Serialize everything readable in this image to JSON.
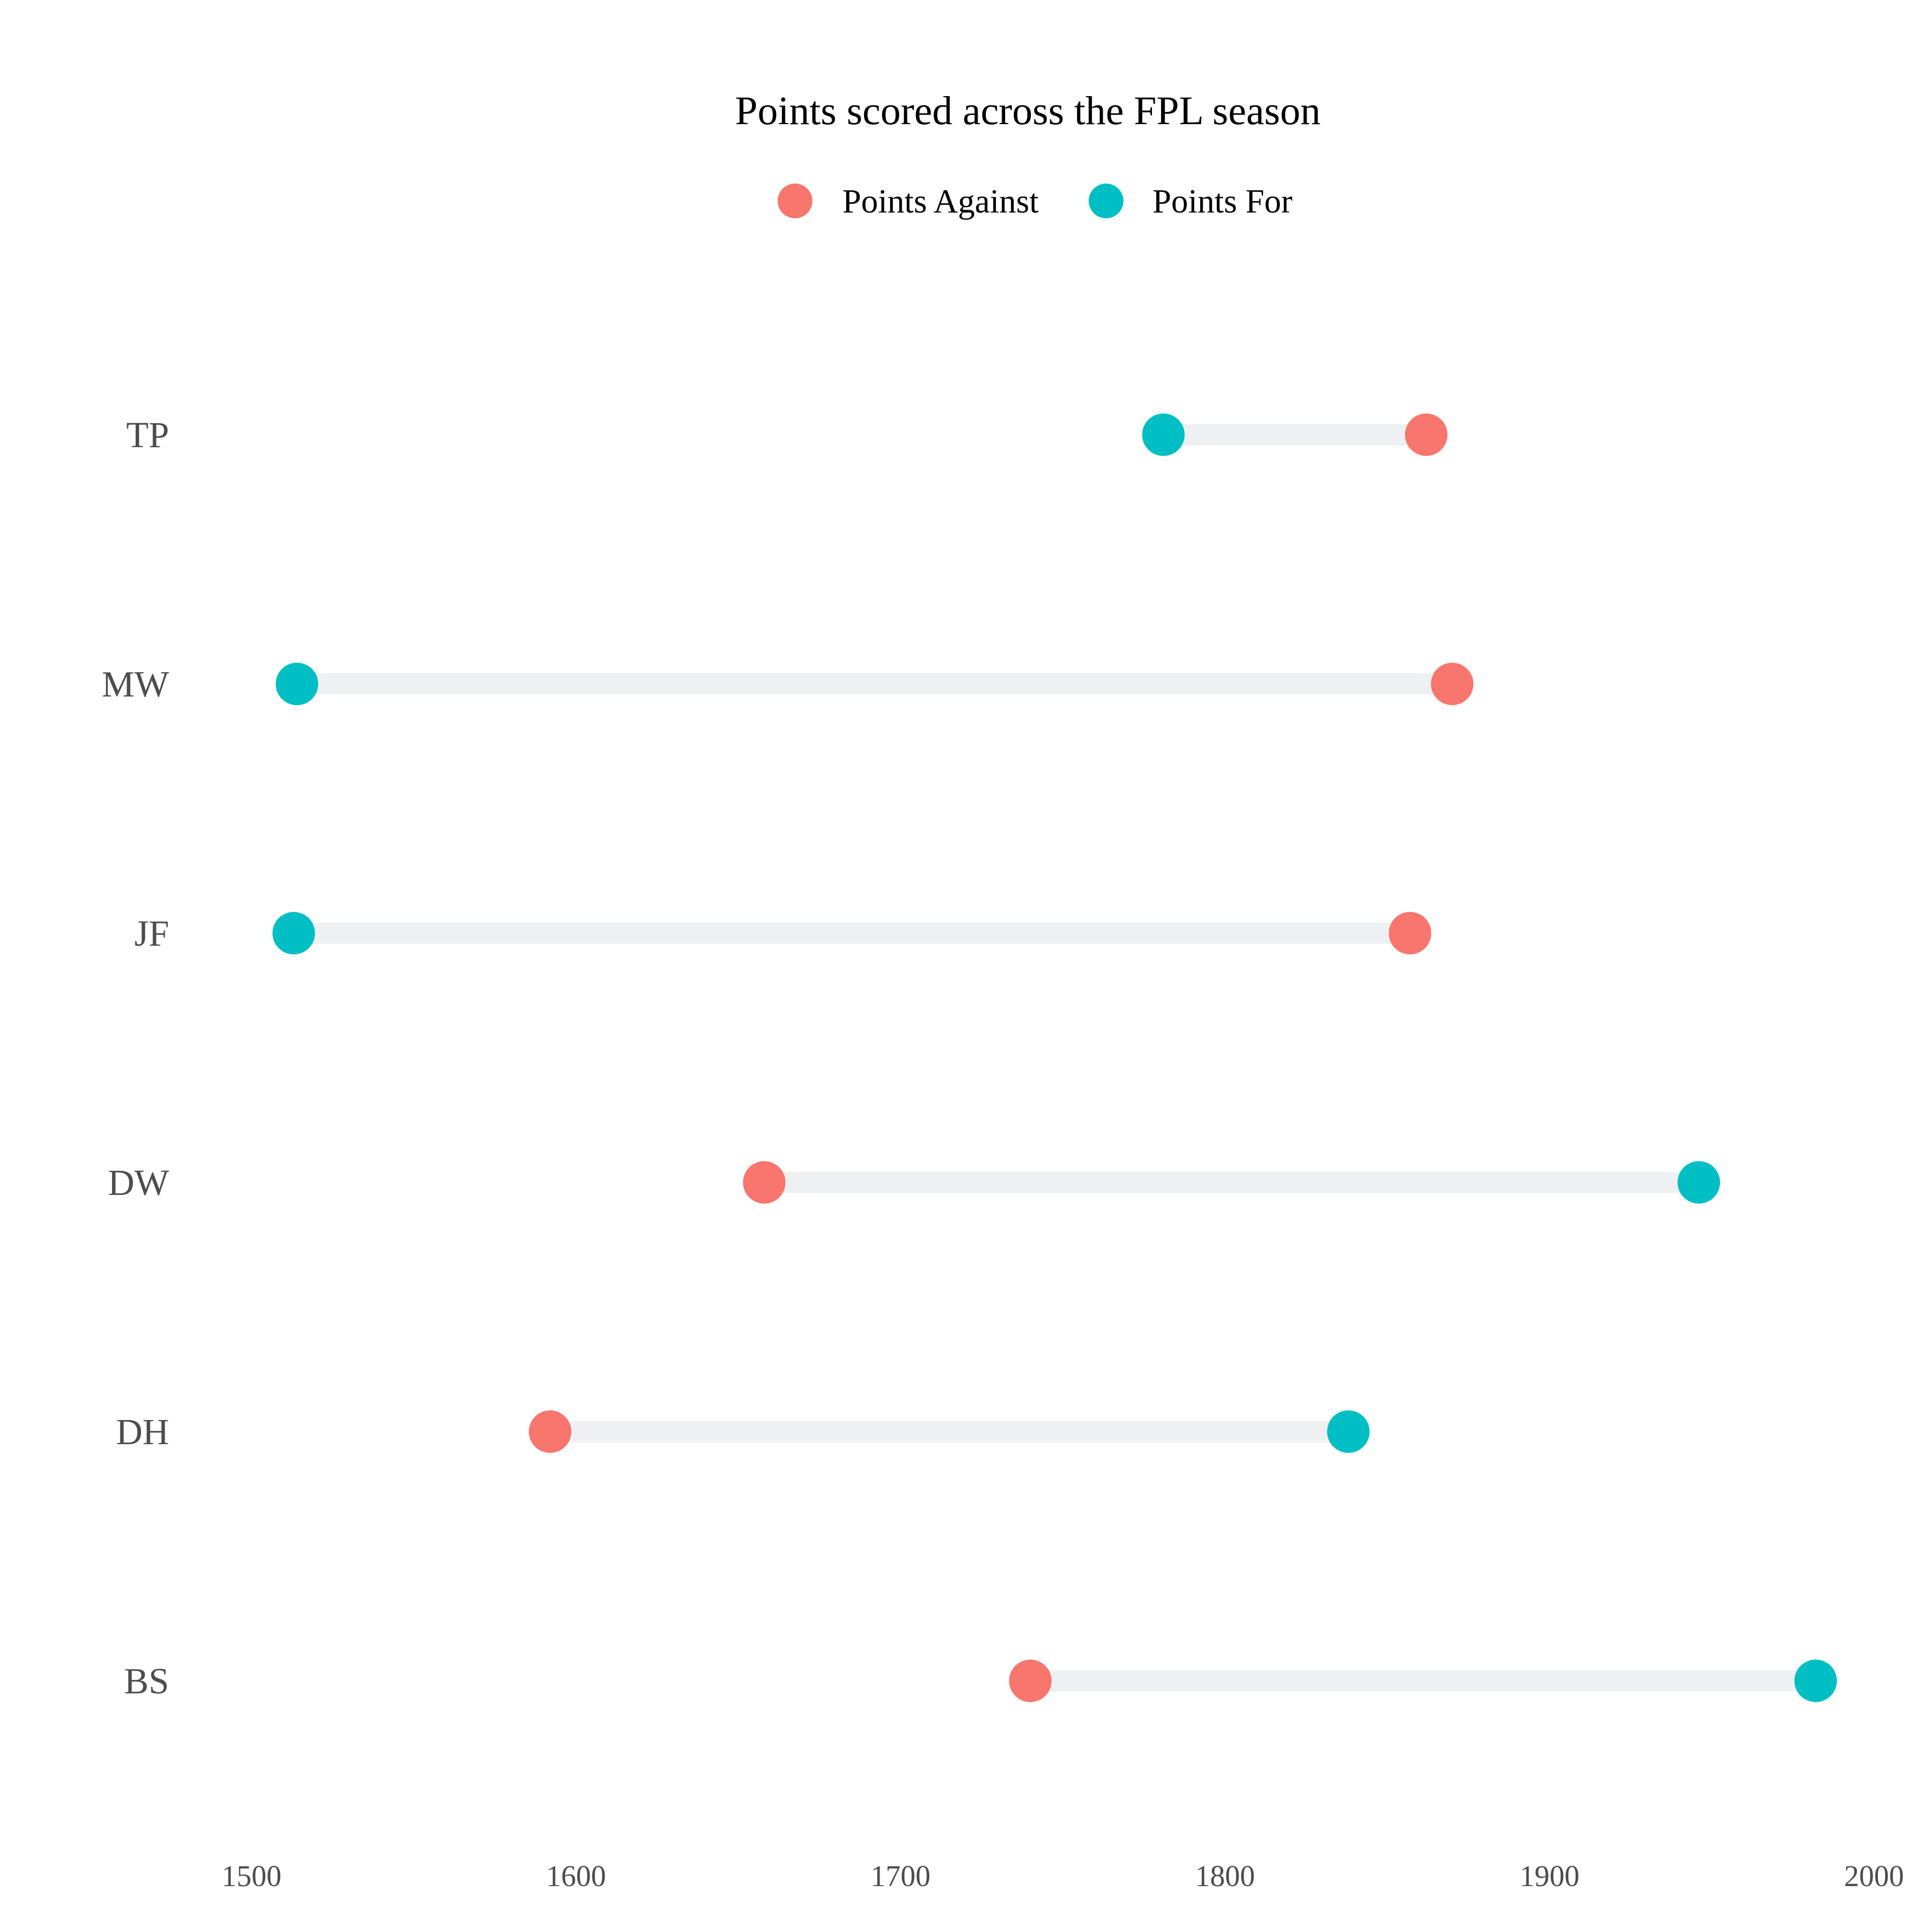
{
  "chart_data": {
    "type": "dumbbell",
    "title": "Points scored across the FPL season",
    "xlabel": "",
    "ylabel": "",
    "xlim": [
      1485,
      2000
    ],
    "x_ticks": [
      1500,
      1600,
      1700,
      1800,
      1900,
      2000
    ],
    "grid": false,
    "legend_position": "top",
    "categories": [
      "TP",
      "MW",
      "JF",
      "DW",
      "DH",
      "BS"
    ],
    "series": [
      {
        "name": "Points Against",
        "color": "#F8766D",
        "values": [
          1862,
          1870,
          1857,
          1658,
          1592,
          1740
        ]
      },
      {
        "name": "Points For",
        "color": "#00BFC4",
        "values": [
          1781,
          1514,
          1513,
          1946,
          1838,
          1982
        ]
      }
    ],
    "segment_color": "#EFF0F2"
  }
}
